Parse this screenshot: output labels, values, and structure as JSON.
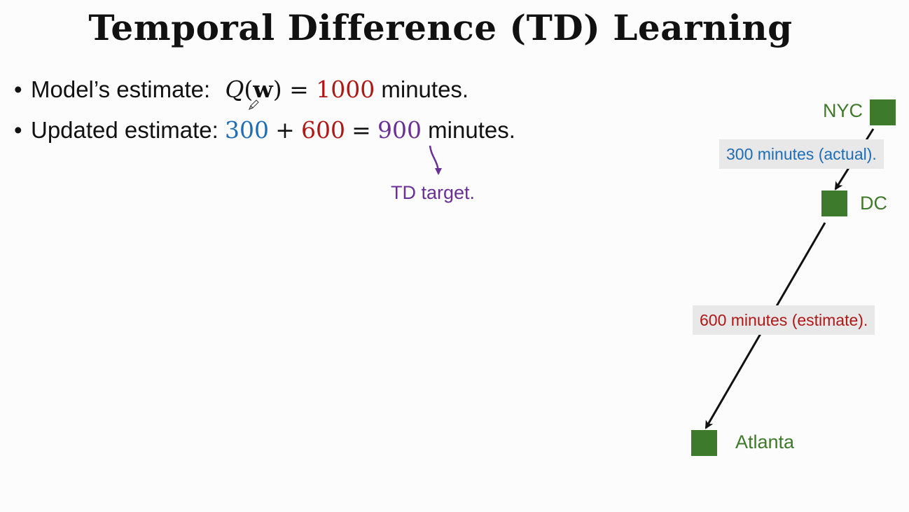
{
  "slide": {
    "title": "Temporal Difference (TD) Learning",
    "bullets": {
      "model": {
        "label": "Model’s estimate:",
        "q_symbol": "Q",
        "w_symbol": "w",
        "value": "1000",
        "unit": "minutes."
      },
      "updated": {
        "label": "Updated estimate:",
        "actual": "300",
        "plus": "+",
        "estimate": "600",
        "equals": "=",
        "target_value": "900",
        "unit": "minutes."
      }
    },
    "td_target_label": "TD target."
  },
  "diagram": {
    "nodes": {
      "start": "NYC",
      "middle": "DC",
      "end": "Atlanta"
    },
    "edges": {
      "nyc_dc": "300 minutes (actual).",
      "dc_atlanta": "600 minutes (estimate)."
    }
  },
  "colors": {
    "actual": "#1f6db5",
    "estimate": "#b01818",
    "target": "#6b2f96",
    "node": "#3d7a2b",
    "node_label": "#3e7a2a"
  },
  "icons": [
    "pen-cursor-icon",
    "curved-arrow-icon",
    "arrow-icon"
  ]
}
